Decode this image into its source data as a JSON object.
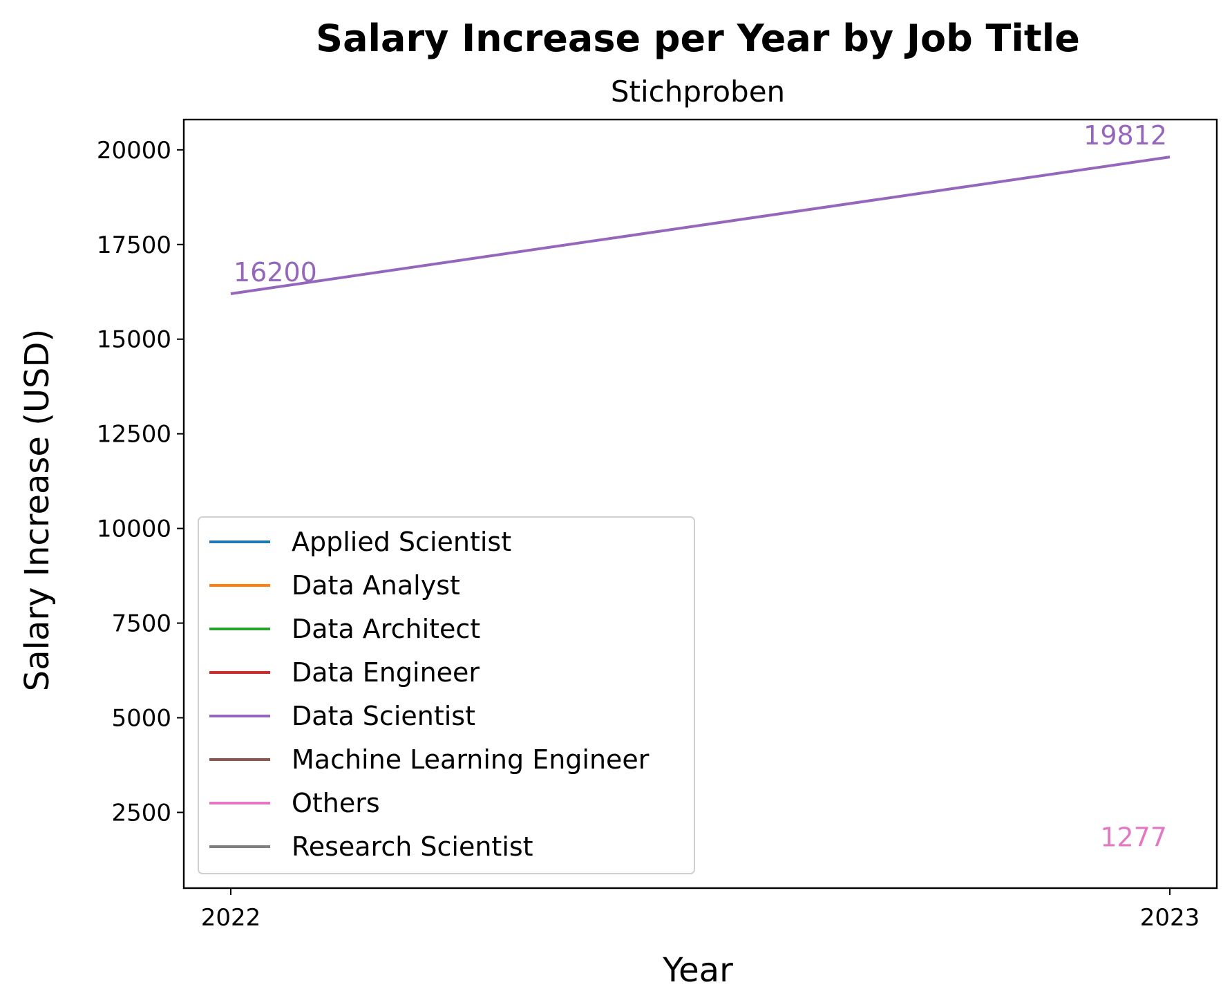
{
  "chart_data": {
    "type": "line",
    "title": "Salary Increase per Year by Job Title",
    "subtitle": "Stichproben",
    "xlabel": "Year",
    "ylabel": "Salary Increase (USD)",
    "x": [
      2022,
      2023
    ],
    "x_tick_labels": [
      "2022",
      "2023"
    ],
    "xlim": [
      2021.95,
      2023.05
    ],
    "ylim": [
      500,
      20800
    ],
    "y_ticks": [
      2500,
      5000,
      7500,
      10000,
      12500,
      15000,
      17500,
      20000
    ],
    "y_tick_labels": [
      "2500",
      "5000",
      "7500",
      "10000",
      "12500",
      "15000",
      "17500",
      "20000"
    ],
    "grid": false,
    "legend_position": "lower-left",
    "series": [
      {
        "name": "Applied Scientist",
        "color": "#1f77b4",
        "values": [
          null,
          null
        ]
      },
      {
        "name": "Data Analyst",
        "color": "#ff7f0e",
        "values": [
          null,
          null
        ]
      },
      {
        "name": "Data Architect",
        "color": "#2ca02c",
        "values": [
          null,
          null
        ]
      },
      {
        "name": "Data Engineer",
        "color": "#d62728",
        "values": [
          null,
          null
        ]
      },
      {
        "name": "Data Scientist",
        "color": "#9467bd",
        "values": [
          16200,
          19812
        ],
        "labels": [
          "16200",
          "19812"
        ]
      },
      {
        "name": "Machine Learning Engineer",
        "color": "#8c564b",
        "values": [
          null,
          null
        ]
      },
      {
        "name": "Others",
        "color": "#e377c2",
        "values": [
          null,
          1277
        ],
        "labels": [
          null,
          "1277"
        ]
      },
      {
        "name": "Research Scientist",
        "color": "#7f7f7f",
        "values": [
          null,
          null
        ]
      }
    ]
  }
}
